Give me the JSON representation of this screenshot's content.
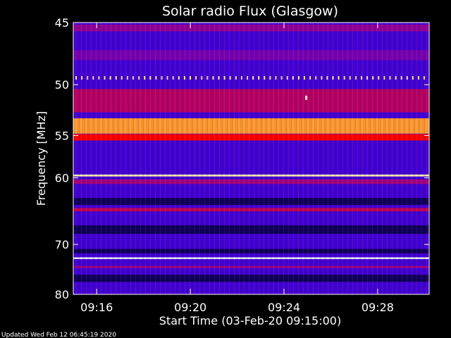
{
  "chart_data": {
    "type": "heatmap",
    "title": "Solar radio Flux (Glasgow)",
    "xlabel": "Start Time (03-Feb-20 09:15:00)",
    "ylabel": "Frequency [MHz]",
    "x_ticks": [
      "09:16",
      "09:20",
      "09:24",
      "09:28"
    ],
    "x_tick_values_min": [
      1,
      5,
      9,
      13
    ],
    "xlim_min": [
      0,
      15.2
    ],
    "y_ticks": [
      "45",
      "50",
      "55",
      "60",
      "70",
      "80"
    ],
    "y_tick_values": [
      45,
      50,
      55,
      60,
      70,
      80
    ],
    "ylim": [
      45,
      80
    ],
    "y_scale": "reciprocal",
    "colormap": [
      "#000020",
      "#0000ff",
      "#8800aa",
      "#ff0000",
      "#ffcc44",
      "#ffffff"
    ],
    "background_intensity": 0.3,
    "bands": [
      {
        "freq": 45.4,
        "width_mhz": 0.5,
        "intensity": 0.42
      },
      {
        "freq": 47.5,
        "width_mhz": 0.8,
        "intensity": 0.38
      },
      {
        "freq": 51.5,
        "width_mhz": 2.2,
        "intensity": 0.48
      },
      {
        "freq": 54.0,
        "width_mhz": 1.6,
        "intensity": 0.75
      },
      {
        "freq": 55.2,
        "width_mhz": 0.7,
        "intensity": 0.6
      },
      {
        "freq": 59.7,
        "width_mhz": 0.25,
        "intensity": 0.92
      },
      {
        "freq": 60.5,
        "width_mhz": 0.6,
        "intensity": 0.45
      },
      {
        "freq": 64.4,
        "width_mhz": 0.5,
        "intensity": 0.5
      },
      {
        "freq": 72.5,
        "width_mhz": 0.3,
        "intensity": 1.0
      },
      {
        "freq": 74.2,
        "width_mhz": 0.4,
        "intensity": 0.45
      }
    ],
    "dark_bands": [
      {
        "freq": 63.2,
        "width_mhz": 1.0
      },
      {
        "freq": 67.5,
        "width_mhz": 1.4
      },
      {
        "freq": 71.2,
        "width_mhz": 0.8
      },
      {
        "freq": 76.5,
        "width_mhz": 1.5
      }
    ],
    "pulsed_line": {
      "freq": 49.4,
      "intensity": 0.9
    },
    "burst_points": [
      {
        "time_min": 9.95,
        "freq": 51.2,
        "intensity": 0.95
      }
    ]
  },
  "footer": {
    "updated": "Updated Wed Feb 12 06:45:19 2020"
  }
}
